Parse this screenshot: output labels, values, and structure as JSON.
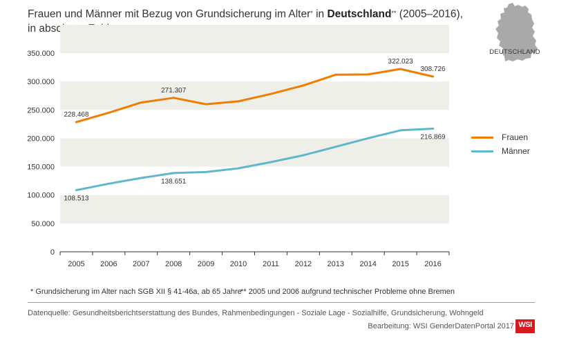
{
  "header": {
    "title_part1": "Frauen und Männer mit Bezug von Grundsicherung im Alter",
    "title_sup1": "*",
    "title_part2": " in ",
    "title_bold": "Deutschland",
    "title_sup2": "**",
    "title_part3": " (2005–2016),",
    "title_line2": "in absoluten Zahlen"
  },
  "map": {
    "label": "DEUTSCHLAND",
    "icon": "germany-map-icon",
    "color": "#a9a9a9"
  },
  "colors": {
    "frauen": "#f07d00",
    "maenner": "#5fb7cc",
    "band": "#efefea",
    "axis": "#333333"
  },
  "chart_data": {
    "type": "line",
    "categories": [
      "2005",
      "2006",
      "2007",
      "2008",
      "2009",
      "2010",
      "2011",
      "2012",
      "2013",
      "2014",
      "2015",
      "2016"
    ],
    "yticks": [
      "0",
      "50.000",
      "100.000",
      "150.000",
      "200.000",
      "250.000",
      "300.000",
      "350.000"
    ],
    "ylim": [
      0,
      350000
    ],
    "series": [
      {
        "name": "Frauen",
        "values": [
          228468,
          245000,
          263000,
          271307,
          260000,
          265000,
          278000,
          293000,
          312000,
          312500,
          322023,
          308726
        ]
      },
      {
        "name": "Männer",
        "values": [
          108513,
          120000,
          130000,
          138651,
          140500,
          147000,
          158000,
          170000,
          185000,
          200000,
          214000,
          216869
        ]
      }
    ],
    "data_labels": [
      {
        "series": 0,
        "index": 0,
        "text": "228.468",
        "pos": "above"
      },
      {
        "series": 0,
        "index": 3,
        "text": "271.307",
        "pos": "above"
      },
      {
        "series": 0,
        "index": 10,
        "text": "322.023",
        "pos": "above"
      },
      {
        "series": 0,
        "index": 11,
        "text": "308.726",
        "pos": "above"
      },
      {
        "series": 1,
        "index": 0,
        "text": "108.513",
        "pos": "below"
      },
      {
        "series": 1,
        "index": 3,
        "text": "138.651",
        "pos": "below"
      },
      {
        "series": 1,
        "index": 11,
        "text": "216.869",
        "pos": "below"
      }
    ],
    "legend_position": "right",
    "grid": "alternating bands"
  },
  "legend": {
    "frauen": "Frauen",
    "maenner": "Männer"
  },
  "footnotes": {
    "note1": "* Grundsicherung im Alter nach SGB XII § 41-46a, ab 65 Jahre",
    "note2": "** 2005 und 2006 aufgrund technischer Probleme ohne Bremen"
  },
  "footer": {
    "source": "Datenquelle: Gesundheitsberichtserstattung des Bundes, Rahmenbedingungen - Soziale Lage - Sozialhilfe, Grundsicherung, Wohngeld",
    "edit": "Bearbeitung: WSI GenderDatenPortal 2017",
    "logo": "WSI"
  }
}
